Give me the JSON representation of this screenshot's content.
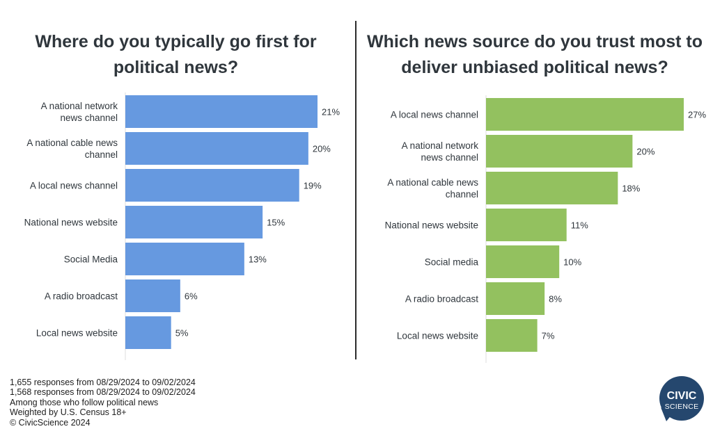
{
  "chart_data": [
    {
      "type": "bar",
      "orientation": "horizontal",
      "title": "Where do you typically go first for political news?",
      "categories": [
        "A national network news channel",
        "A national cable news channel",
        "A local news channel",
        "National news website",
        "Social Media",
        "A radio broadcast",
        "Local news website"
      ],
      "values": [
        21,
        20,
        19,
        15,
        13,
        6,
        5
      ],
      "value_labels": [
        "21%",
        "20%",
        "19%",
        "15%",
        "13%",
        "6%",
        "5%"
      ],
      "unit": "%",
      "xlim": [
        0,
        21
      ],
      "bar_color": "#6699e0",
      "grid": false,
      "legend": "none"
    },
    {
      "type": "bar",
      "orientation": "horizontal",
      "title": "Which news source do you trust most to deliver unbiased political news?",
      "categories": [
        "A local news channel",
        "A national network news channel",
        "A national cable news channel",
        "National news website",
        "Social media",
        "A radio broadcast",
        "Local news website"
      ],
      "values": [
        27,
        20,
        18,
        11,
        10,
        8,
        7
      ],
      "value_labels": [
        "27%",
        "20%",
        "18%",
        "11%",
        "10%",
        "8%",
        "7%"
      ],
      "unit": "%",
      "xlim": [
        0,
        27
      ],
      "bar_color": "#93c15f",
      "grid": false,
      "legend": "none"
    }
  ],
  "footer": {
    "lines": [
      "1,655 responses from 08/29/2024 to 09/02/2024",
      "1,568 responses from 08/29/2024 to 09/02/2024",
      "Among those who follow political news",
      "Weighted by U.S. Census 18+",
      "© CivicScience 2024"
    ]
  },
  "logo": {
    "line1": "CIVIC",
    "line2": "SCIENCE",
    "color": "#25476e",
    "icon": "speech-bubble-logo"
  }
}
